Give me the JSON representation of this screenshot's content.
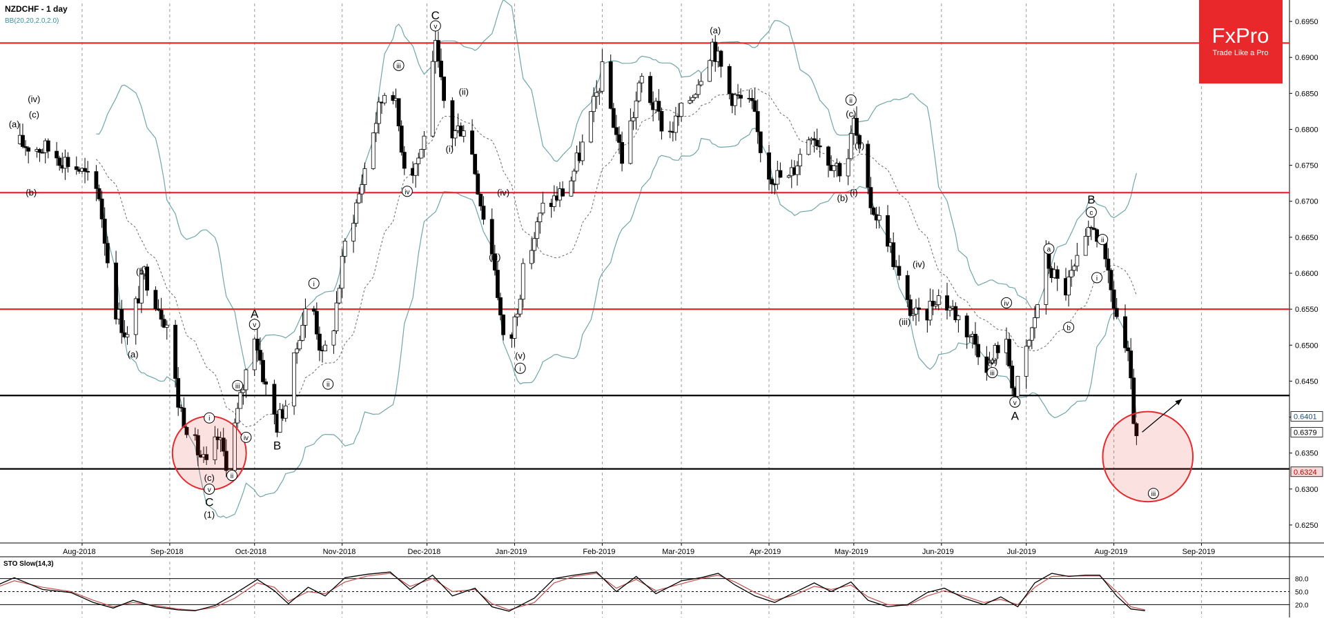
{
  "header": {
    "symbol_label": "NZDCHF - 1 day",
    "indicator_label": "BB(20,20,2.0,2.0)"
  },
  "stoch": {
    "label": "STO Slow(14,3)",
    "levels": [
      "80.0",
      "50.0",
      "20.0"
    ]
  },
  "brand": {
    "name": "FxPro",
    "tagline": "Trade Like a Pro",
    "color": "#e8282b"
  },
  "colors": {
    "resistance": "#e8282b",
    "support": "#000000",
    "band": "#6fa6a6",
    "bull": "#ffffff",
    "bear": "#000000",
    "stoch_k": "#000000",
    "stoch_d": "#c0504d"
  },
  "price_tags": [
    {
      "value": "0.6401",
      "fill": "#ffffff",
      "text": "#1f4e79"
    },
    {
      "value": "0.6379",
      "fill": "#ffffff",
      "text": "#000000"
    },
    {
      "value": "0.6324",
      "fill": "#f8d9d9",
      "text": "#c00000"
    }
  ],
  "chart_data": {
    "type": "candlestick",
    "title": "NZDCHF - 1 day",
    "ylim": [
      0.6225,
      0.6975
    ],
    "y_ticks": [
      "0.6950",
      "0.6900",
      "0.6850",
      "0.6800",
      "0.6750",
      "0.6700",
      "0.6650",
      "0.6600",
      "0.6550",
      "0.6500",
      "0.6450",
      "0.6400",
      "0.6350",
      "0.6300",
      "0.6250"
    ],
    "x_ticks": [
      "Aug-2018",
      "Sep-2018",
      "Oct-2018",
      "Nov-2018",
      "Dec-2018",
      "Jan-2019",
      "Feb-2019",
      "Mar-2019",
      "Apr-2019",
      "May-2019",
      "Jun-2019",
      "Jul-2019",
      "Aug-2019",
      "Sep-2019"
    ],
    "horizontal_levels": [
      {
        "value": 0.692,
        "kind": "resistance"
      },
      {
        "value": 0.6712,
        "kind": "resistance"
      },
      {
        "value": 0.655,
        "kind": "resistance"
      },
      {
        "value": 0.643,
        "kind": "support"
      },
      {
        "value": 0.6328,
        "kind": "support"
      }
    ],
    "close_path": [
      [
        "2018-07-10",
        0.678
      ],
      [
        "2018-07-20",
        0.6772
      ],
      [
        "2018-07-31",
        0.6745
      ],
      [
        "2018-08-07",
        0.671
      ],
      [
        "2018-08-12",
        0.656
      ],
      [
        "2018-08-17",
        0.651
      ],
      [
        "2018-08-23",
        0.66
      ],
      [
        "2018-08-31",
        0.653
      ],
      [
        "2018-09-04",
        0.642
      ],
      [
        "2018-09-10",
        0.636
      ],
      [
        "2018-09-14",
        0.633
      ],
      [
        "2018-09-18",
        0.637
      ],
      [
        "2018-09-21",
        0.634
      ],
      [
        "2018-09-25",
        0.6405
      ],
      [
        "2018-10-01",
        0.652
      ],
      [
        "2018-10-05",
        0.644
      ],
      [
        "2018-10-09",
        0.639
      ],
      [
        "2018-10-13",
        0.643
      ],
      [
        "2018-10-17",
        0.652
      ],
      [
        "2018-10-21",
        0.657
      ],
      [
        "2018-10-25",
        0.648
      ],
      [
        "2018-10-29",
        0.653
      ],
      [
        "2018-11-02",
        0.664
      ],
      [
        "2018-11-07",
        0.671
      ],
      [
        "2018-11-12",
        0.68
      ],
      [
        "2018-11-18",
        0.688
      ],
      [
        "2018-11-24",
        0.673
      ],
      [
        "2018-11-29",
        0.677
      ],
      [
        "2018-12-04",
        0.691
      ],
      [
        "2018-12-09",
        0.679
      ],
      [
        "2018-12-15",
        0.681
      ],
      [
        "2018-12-20",
        0.67
      ],
      [
        "2018-12-25",
        0.661
      ],
      [
        "2018-12-29",
        0.647
      ],
      [
        "2019-01-04",
        0.66
      ],
      [
        "2019-01-11",
        0.669
      ],
      [
        "2019-01-20",
        0.672
      ],
      [
        "2019-01-27",
        0.68
      ],
      [
        "2019-02-01",
        0.688
      ],
      [
        "2019-02-08",
        0.676
      ],
      [
        "2019-02-15",
        0.687
      ],
      [
        "2019-02-24",
        0.679
      ],
      [
        "2019-03-05",
        0.685
      ],
      [
        "2019-03-12",
        0.692
      ],
      [
        "2019-03-18",
        0.685
      ],
      [
        "2019-03-26",
        0.683
      ],
      [
        "2019-03-31",
        0.674
      ],
      [
        "2019-04-08",
        0.673
      ],
      [
        "2019-04-16",
        0.68
      ],
      [
        "2019-04-22",
        0.676
      ],
      [
        "2019-04-28",
        0.674
      ],
      [
        "2019-05-01",
        0.681
      ],
      [
        "2019-05-06",
        0.6705
      ],
      [
        "2019-05-13",
        0.665
      ],
      [
        "2019-05-19",
        0.656
      ],
      [
        "2019-05-25",
        0.653
      ],
      [
        "2019-05-30",
        0.657
      ],
      [
        "2019-06-05",
        0.655
      ],
      [
        "2019-06-12",
        0.651
      ],
      [
        "2019-06-18",
        0.647
      ],
      [
        "2019-06-23",
        0.652
      ],
      [
        "2019-06-27",
        0.643
      ],
      [
        "2019-07-03",
        0.652
      ],
      [
        "2019-07-08",
        0.662
      ],
      [
        "2019-07-14",
        0.657
      ],
      [
        "2019-07-20",
        0.662
      ],
      [
        "2019-07-25",
        0.667
      ],
      [
        "2019-07-30",
        0.659
      ],
      [
        "2019-08-02",
        0.654
      ],
      [
        "2019-08-06",
        0.648
      ],
      [
        "2019-08-09",
        0.636
      ],
      [
        "2019-08-11",
        0.6379
      ]
    ],
    "projection": {
      "from": [
        "2019-08-11",
        0.6379
      ],
      "to": [
        "2019-08-25",
        0.6425
      ]
    },
    "price_tags": [
      0.6401,
      0.6379,
      0.6324
    ],
    "highlights": [
      {
        "center": [
          "2018-09-15",
          0.635
        ],
        "radius_days": 9
      },
      {
        "center": [
          "2019-08-13",
          0.6345
        ],
        "radius_days": 11
      }
    ],
    "wave_labels": [
      {
        "text": "(a)",
        "x": "2018-07-08",
        "y": 0.6805
      },
      {
        "text": "(c)",
        "x": "2018-07-15",
        "y": 0.6818
      },
      {
        "text": "(iv)",
        "x": "2018-07-15",
        "y": 0.684
      },
      {
        "text": "(b)",
        "x": "2018-07-14",
        "y": 0.671
      },
      {
        "text": "(b)",
        "x": "2018-08-22",
        "y": 0.66
      },
      {
        "text": "(a)",
        "x": "2018-08-19",
        "y": 0.6485
      },
      {
        "text": "i",
        "x": "2018-09-15",
        "y": 0.6395
      },
      {
        "text": "(c)",
        "x": "2018-09-15",
        "y": 0.6313
      },
      {
        "text": "v",
        "x": "2018-09-15",
        "y": 0.6296
      },
      {
        "text": "C",
        "x": "2018-09-15",
        "y": 0.6278
      },
      {
        "text": "(1)",
        "x": "2018-09-15",
        "y": 0.6262
      },
      {
        "text": "ii",
        "x": "2018-09-23",
        "y": 0.6315
      },
      {
        "text": "iii",
        "x": "2018-09-25",
        "y": 0.644
      },
      {
        "text": "iv",
        "x": "2018-09-28",
        "y": 0.6368
      },
      {
        "text": "A",
        "x": "2018-10-01",
        "y": 0.654
      },
      {
        "text": "v",
        "x": "2018-10-01",
        "y": 0.6525
      },
      {
        "text": "B",
        "x": "2018-10-09",
        "y": 0.6357
      },
      {
        "text": "i",
        "x": "2018-10-22",
        "y": 0.6582
      },
      {
        "text": "ii",
        "x": "2018-10-27",
        "y": 0.6442
      },
      {
        "text": "iii",
        "x": "2018-11-21",
        "y": 0.6885
      },
      {
        "text": "iv",
        "x": "2018-11-24",
        "y": 0.671
      },
      {
        "text": "C",
        "x": "2018-12-04",
        "y": 0.6955
      },
      {
        "text": "v",
        "x": "2018-12-04",
        "y": 0.694
      },
      {
        "text": "(ii)",
        "x": "2018-12-14",
        "y": 0.685
      },
      {
        "text": "(i)",
        "x": "2018-12-09",
        "y": 0.677
      },
      {
        "text": "(iv)",
        "x": "2018-12-28",
        "y": 0.671
      },
      {
        "text": "(iii)",
        "x": "2018-12-25",
        "y": 0.662
      },
      {
        "text": "(v)",
        "x": "2019-01-03",
        "y": 0.6483
      },
      {
        "text": "i",
        "x": "2019-01-03",
        "y": 0.6464
      },
      {
        "text": "(a)",
        "x": "2019-03-13",
        "y": 0.6935
      },
      {
        "text": "ii",
        "x": "2019-04-30",
        "y": 0.6837
      },
      {
        "text": "(c)",
        "x": "2019-04-30",
        "y": 0.6819
      },
      {
        "text": "(ii)",
        "x": "2019-05-03",
        "y": 0.6775
      },
      {
        "text": "(b)",
        "x": "2019-04-27",
        "y": 0.6702
      },
      {
        "text": "(i)",
        "x": "2019-05-01",
        "y": 0.671
      },
      {
        "text": "(iv)",
        "x": "2019-05-24",
        "y": 0.661
      },
      {
        "text": "(iii)",
        "x": "2019-05-19",
        "y": 0.653
      },
      {
        "text": "(v)",
        "x": "2019-06-19",
        "y": 0.6475
      },
      {
        "text": "iii",
        "x": "2019-06-19",
        "y": 0.6458
      },
      {
        "text": "iv",
        "x": "2019-06-24",
        "y": 0.6555
      },
      {
        "text": "v",
        "x": "2019-06-27",
        "y": 0.6417
      },
      {
        "text": "A",
        "x": "2019-06-27",
        "y": 0.6398
      },
      {
        "text": "a",
        "x": "2019-07-09",
        "y": 0.663
      },
      {
        "text": "b",
        "x": "2019-07-16",
        "y": 0.6521
      },
      {
        "text": "B",
        "x": "2019-07-24",
        "y": 0.6699
      },
      {
        "text": "c",
        "x": "2019-07-24",
        "y": 0.6681
      },
      {
        "text": "ii",
        "x": "2019-07-28",
        "y": 0.6643
      },
      {
        "text": "i",
        "x": "2019-07-26",
        "y": 0.659
      },
      {
        "text": "iii",
        "x": "2019-08-15",
        "y": 0.629
      }
    ]
  },
  "stoch_data": {
    "type": "line",
    "title": "STO Slow(14,3)",
    "ylim": [
      0,
      100
    ],
    "levels": [
      80,
      50,
      20
    ],
    "k": [
      [
        "2018-07-01",
        62
      ],
      [
        "2018-07-08",
        82
      ],
      [
        "2018-07-18",
        55
      ],
      [
        "2018-07-28",
        48
      ],
      [
        "2018-08-05",
        25
      ],
      [
        "2018-08-12",
        12
      ],
      [
        "2018-08-19",
        30
      ],
      [
        "2018-08-27",
        15
      ],
      [
        "2018-09-04",
        8
      ],
      [
        "2018-09-10",
        6
      ],
      [
        "2018-09-17",
        18
      ],
      [
        "2018-09-24",
        45
      ],
      [
        "2018-10-02",
        78
      ],
      [
        "2018-10-08",
        52
      ],
      [
        "2018-10-13",
        22
      ],
      [
        "2018-10-20",
        60
      ],
      [
        "2018-10-26",
        40
      ],
      [
        "2018-11-02",
        82
      ],
      [
        "2018-11-10",
        90
      ],
      [
        "2018-11-18",
        95
      ],
      [
        "2018-11-25",
        55
      ],
      [
        "2018-12-03",
        88
      ],
      [
        "2018-12-10",
        40
      ],
      [
        "2018-12-18",
        58
      ],
      [
        "2018-12-24",
        15
      ],
      [
        "2018-12-30",
        5
      ],
      [
        "2019-01-08",
        35
      ],
      [
        "2019-01-15",
        80
      ],
      [
        "2019-01-22",
        88
      ],
      [
        "2019-01-30",
        95
      ],
      [
        "2019-02-06",
        50
      ],
      [
        "2019-02-13",
        85
      ],
      [
        "2019-02-20",
        45
      ],
      [
        "2019-03-01",
        75
      ],
      [
        "2019-03-08",
        82
      ],
      [
        "2019-03-14",
        92
      ],
      [
        "2019-03-20",
        65
      ],
      [
        "2019-03-27",
        40
      ],
      [
        "2019-04-03",
        25
      ],
      [
        "2019-04-10",
        48
      ],
      [
        "2019-04-17",
        70
      ],
      [
        "2019-04-23",
        50
      ],
      [
        "2019-04-30",
        72
      ],
      [
        "2019-05-06",
        30
      ],
      [
        "2019-05-13",
        15
      ],
      [
        "2019-05-20",
        20
      ],
      [
        "2019-05-27",
        48
      ],
      [
        "2019-06-02",
        58
      ],
      [
        "2019-06-09",
        35
      ],
      [
        "2019-06-16",
        20
      ],
      [
        "2019-06-22",
        38
      ],
      [
        "2019-06-28",
        15
      ],
      [
        "2019-07-04",
        70
      ],
      [
        "2019-07-10",
        92
      ],
      [
        "2019-07-16",
        85
      ],
      [
        "2019-07-22",
        88
      ],
      [
        "2019-07-27",
        88
      ],
      [
        "2019-08-02",
        40
      ],
      [
        "2019-08-07",
        10
      ],
      [
        "2019-08-12",
        6
      ]
    ],
    "d": [
      [
        "2018-07-01",
        58
      ],
      [
        "2018-07-08",
        75
      ],
      [
        "2018-07-18",
        60
      ],
      [
        "2018-07-28",
        50
      ],
      [
        "2018-08-05",
        30
      ],
      [
        "2018-08-12",
        15
      ],
      [
        "2018-08-19",
        25
      ],
      [
        "2018-08-27",
        18
      ],
      [
        "2018-09-04",
        10
      ],
      [
        "2018-09-10",
        7
      ],
      [
        "2018-09-17",
        14
      ],
      [
        "2018-09-24",
        35
      ],
      [
        "2018-10-02",
        70
      ],
      [
        "2018-10-08",
        60
      ],
      [
        "2018-10-13",
        28
      ],
      [
        "2018-10-20",
        50
      ],
      [
        "2018-10-26",
        45
      ],
      [
        "2018-11-02",
        72
      ],
      [
        "2018-11-10",
        86
      ],
      [
        "2018-11-18",
        92
      ],
      [
        "2018-11-25",
        62
      ],
      [
        "2018-12-03",
        80
      ],
      [
        "2018-12-10",
        50
      ],
      [
        "2018-12-18",
        55
      ],
      [
        "2018-12-24",
        22
      ],
      [
        "2018-12-30",
        8
      ],
      [
        "2019-01-08",
        25
      ],
      [
        "2019-01-15",
        70
      ],
      [
        "2019-01-22",
        85
      ],
      [
        "2019-01-30",
        92
      ],
      [
        "2019-02-06",
        58
      ],
      [
        "2019-02-13",
        78
      ],
      [
        "2019-02-20",
        52
      ],
      [
        "2019-03-01",
        68
      ],
      [
        "2019-03-08",
        80
      ],
      [
        "2019-03-14",
        88
      ],
      [
        "2019-03-20",
        72
      ],
      [
        "2019-03-27",
        48
      ],
      [
        "2019-04-03",
        30
      ],
      [
        "2019-04-10",
        42
      ],
      [
        "2019-04-17",
        62
      ],
      [
        "2019-04-23",
        55
      ],
      [
        "2019-04-30",
        65
      ],
      [
        "2019-05-06",
        38
      ],
      [
        "2019-05-13",
        20
      ],
      [
        "2019-05-20",
        18
      ],
      [
        "2019-05-27",
        40
      ],
      [
        "2019-06-02",
        52
      ],
      [
        "2019-06-09",
        40
      ],
      [
        "2019-06-16",
        25
      ],
      [
        "2019-06-22",
        32
      ],
      [
        "2019-06-28",
        20
      ],
      [
        "2019-07-04",
        60
      ],
      [
        "2019-07-10",
        85
      ],
      [
        "2019-07-16",
        86
      ],
      [
        "2019-07-22",
        86
      ],
      [
        "2019-07-27",
        86
      ],
      [
        "2019-08-02",
        50
      ],
      [
        "2019-08-07",
        15
      ],
      [
        "2019-08-12",
        8
      ]
    ]
  }
}
